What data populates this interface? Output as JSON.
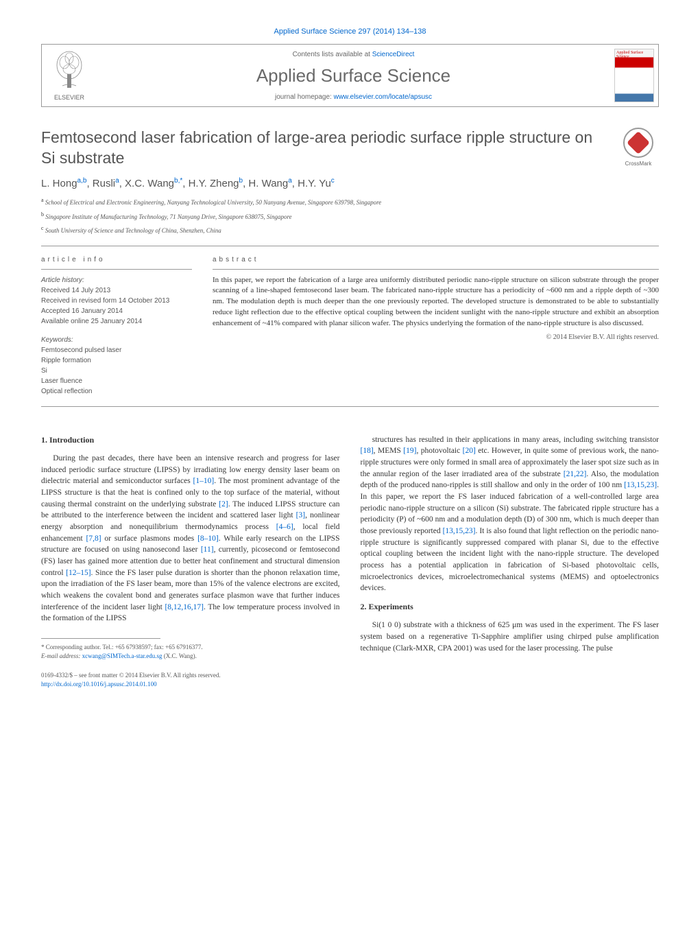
{
  "journal_ref": "Applied Surface Science 297 (2014) 134–138",
  "header": {
    "contents_prefix": "Contents lists available at ",
    "contents_link": "ScienceDirect",
    "journal_name": "Applied Surface Science",
    "homepage_prefix": "journal homepage: ",
    "homepage_url": "www.elsevier.com/locate/apsusc",
    "publisher": "ELSEVIER",
    "cover_label": "Applied Surface Science"
  },
  "crossmark_label": "CrossMark",
  "title": "Femtosecond laser fabrication of large-area periodic surface ripple structure on Si substrate",
  "authors_html": "L. Hong<sup class='aff'>a,b</sup>, Rusli<sup class='aff'>a</sup>, X.C. Wang<sup class='aff'>b,*</sup>, H.Y. Zheng<sup class='aff'>b</sup>, H. Wang<sup class='aff'>a</sup>, H.Y. Yu<sup class='aff'>c</sup>",
  "affiliations": [
    {
      "sup": "a",
      "text": "School of Electrical and Electronic Engineering, Nanyang Technological University, 50 Nanyang Avenue, Singapore 639798, Singapore"
    },
    {
      "sup": "b",
      "text": "Singapore Institute of Manufacturing Technology, 71 Nanyang Drive, Singapore 638075, Singapore"
    },
    {
      "sup": "c",
      "text": "South University of Science and Technology of China, Shenzhen, China"
    }
  ],
  "info": {
    "header": "article info",
    "history_label": "Article history:",
    "history": [
      "Received 14 July 2013",
      "Received in revised form 14 October 2013",
      "Accepted 16 January 2014",
      "Available online 25 January 2014"
    ],
    "keywords_label": "Keywords:",
    "keywords": [
      "Femtosecond pulsed laser",
      "Ripple formation",
      "Si",
      "Laser fluence",
      "Optical reflection"
    ]
  },
  "abstract": {
    "header": "abstract",
    "text": "In this paper, we report the fabrication of a large area uniformly distributed periodic nano-ripple structure on silicon substrate through the proper scanning of a line-shaped femtosecond laser beam. The fabricated nano-ripple structure has a periodicity of ~600 nm and a ripple depth of ~300 nm. The modulation depth is much deeper than the one previously reported. The developed structure is demonstrated to be able to substantially reduce light reflection due to the effective optical coupling between the incident sunlight with the nano-ripple structure and exhibit an absorption enhancement of ~41% compared with planar silicon wafer. The physics underlying the formation of the nano-ripple structure is also discussed.",
    "copyright": "© 2014 Elsevier B.V. All rights reserved."
  },
  "sections": {
    "intro_heading": "1. Introduction",
    "intro_p1": "During the past decades, there have been an intensive research and progress for laser induced periodic surface structure (LIPSS) by irradiating low energy density laser beam on dielectric material and semiconductor surfaces [1–10]. The most prominent advantage of the LIPSS structure is that the heat is confined only to the top surface of the material, without causing thermal constraint on the underlying substrate [2]. The induced LIPSS structure can be attributed to the interference between the incident and scattered laser light [3], nonlinear energy absorption and nonequilibrium thermodynamics process [4–6], local field enhancement [7,8] or surface plasmons modes [8–10]. While early research on the LIPSS structure are focused on using nanosecond laser [11], currently, picosecond or femtosecond (FS) laser has gained more attention due to better heat confinement and structural dimension control [12–15]. Since the FS laser pulse duration is shorter than the phonon relaxation time, upon the irradiation of the FS laser beam, more than 15% of the valence electrons are excited, which weakens the covalent bond and generates surface plasmon wave that further induces interference of the incident laser light [8,12,16,17]. The low temperature process involved in the formation of the LIPSS",
    "intro_p2": "structures has resulted in their applications in many areas, including switching transistor [18], MEMS [19], photovoltaic [20] etc. However, in quite some of previous work, the nano-ripple structures were only formed in small area of approximately the laser spot size such as in the annular region of the laser irradiated area of the substrate [21,22]. Also, the modulation depth of the produced nano-ripples is still shallow and only in the order of 100 nm [13,15,23]. In this paper, we report the FS laser induced fabrication of a well-controlled large area periodic nano-ripple structure on a silicon (Si) substrate. The fabricated ripple structure has a periodicity (P) of ~600 nm and a modulation depth (D) of 300 nm, which is much deeper than those previously reported [13,15,23]. It is also found that light reflection on the periodic nano-ripple structure is significantly suppressed compared with planar Si, due to the effective optical coupling between the incident light with the nano-ripple structure. The developed process has a potential application in fabrication of Si-based photovoltaic cells, microelectronics devices, microelectromechanical systems (MEMS) and optoelectronics devices.",
    "exp_heading": "2. Experiments",
    "exp_p1": "Si(1 0 0) substrate with a thickness of 625 μm was used in the experiment. The FS laser system based on a regenerative Ti-Sapphire amplifier using chirped pulse amplification technique (Clark-MXR, CPA 2001) was used for the laser processing. The pulse"
  },
  "footnote": {
    "corr": "* Corresponding author. Tel.: +65 67938597; fax: +65 67916377.",
    "email_label": "E-mail address: ",
    "email": "xcwang@SIMTech.a-star.edu.sg",
    "email_suffix": " (X.C. Wang)."
  },
  "bottom": {
    "issn": "0169-4332/$ – see front matter © 2014 Elsevier B.V. All rights reserved.",
    "doi": "http://dx.doi.org/10.1016/j.apsusc.2014.01.100"
  },
  "colors": {
    "link": "#0066cc",
    "text": "#333333",
    "gray": "#555555",
    "border": "#999999"
  }
}
